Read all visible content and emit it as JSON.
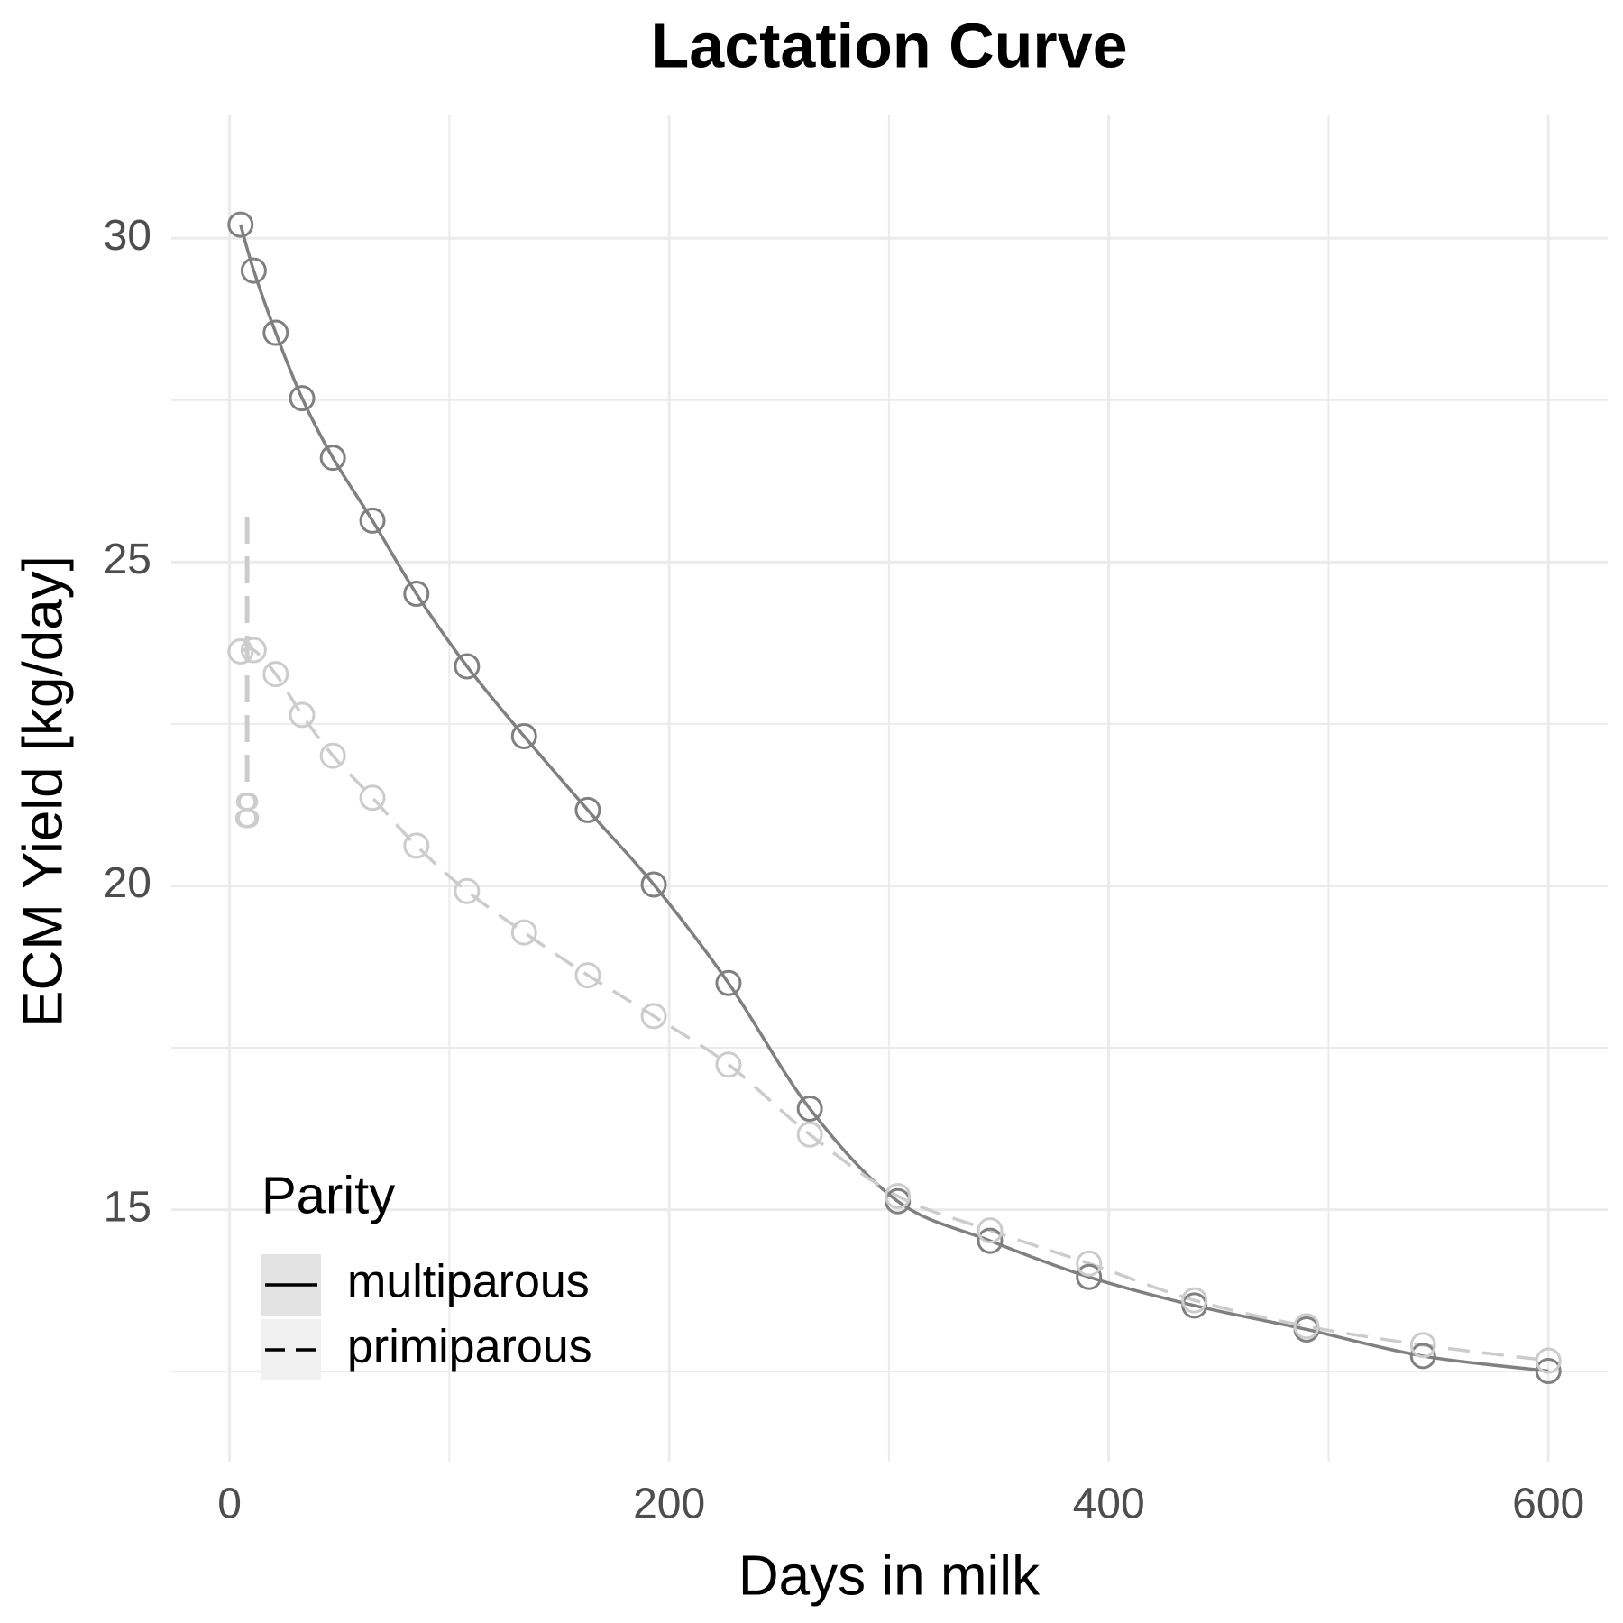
{
  "chart_data": {
    "type": "line",
    "title": "Lactation Curve",
    "x_label": "Days in milk",
    "y_label": "ECM Yield [kg/day]",
    "xlim": [
      -26.5,
      627
    ],
    "ylim": [
      11.11,
      31.91
    ],
    "xticks": [
      0,
      200,
      400,
      600
    ],
    "yticks": [
      15,
      20,
      25,
      30
    ],
    "x_minor_grid": [
      100,
      300,
      500
    ],
    "y_minor_grid": [
      12.5,
      17.5,
      22.5,
      27.5
    ],
    "grid": true,
    "legend_title": "Parity",
    "legend_position": "bottom-left",
    "x": [
      5,
      11,
      21,
      33,
      47,
      65,
      85,
      108,
      134,
      163,
      193,
      227,
      264,
      304,
      346,
      391,
      439,
      490,
      543,
      600
    ],
    "series": [
      {
        "name": "multiparous",
        "color": "#808080",
        "dash": "solid",
        "values": [
          30.21,
          29.5,
          28.54,
          27.53,
          26.61,
          25.64,
          24.51,
          23.39,
          22.31,
          21.17,
          20.02,
          18.5,
          16.56,
          15.13,
          14.52,
          13.96,
          13.52,
          13.15,
          12.74,
          12.51
        ]
      },
      {
        "name": "primiparous",
        "color": "#cccccc",
        "dash": "dashed",
        "values": [
          23.62,
          23.64,
          23.27,
          22.64,
          22.01,
          21.36,
          20.62,
          19.92,
          19.28,
          18.62,
          17.99,
          17.24,
          16.16,
          15.21,
          14.68,
          14.17,
          13.6,
          13.2,
          12.91,
          12.67
        ]
      }
    ],
    "annotation": {
      "text": "8",
      "x": 8,
      "y": 21.1,
      "line": [
        25.7,
        21.6
      ],
      "color": "#cccccc"
    }
  }
}
